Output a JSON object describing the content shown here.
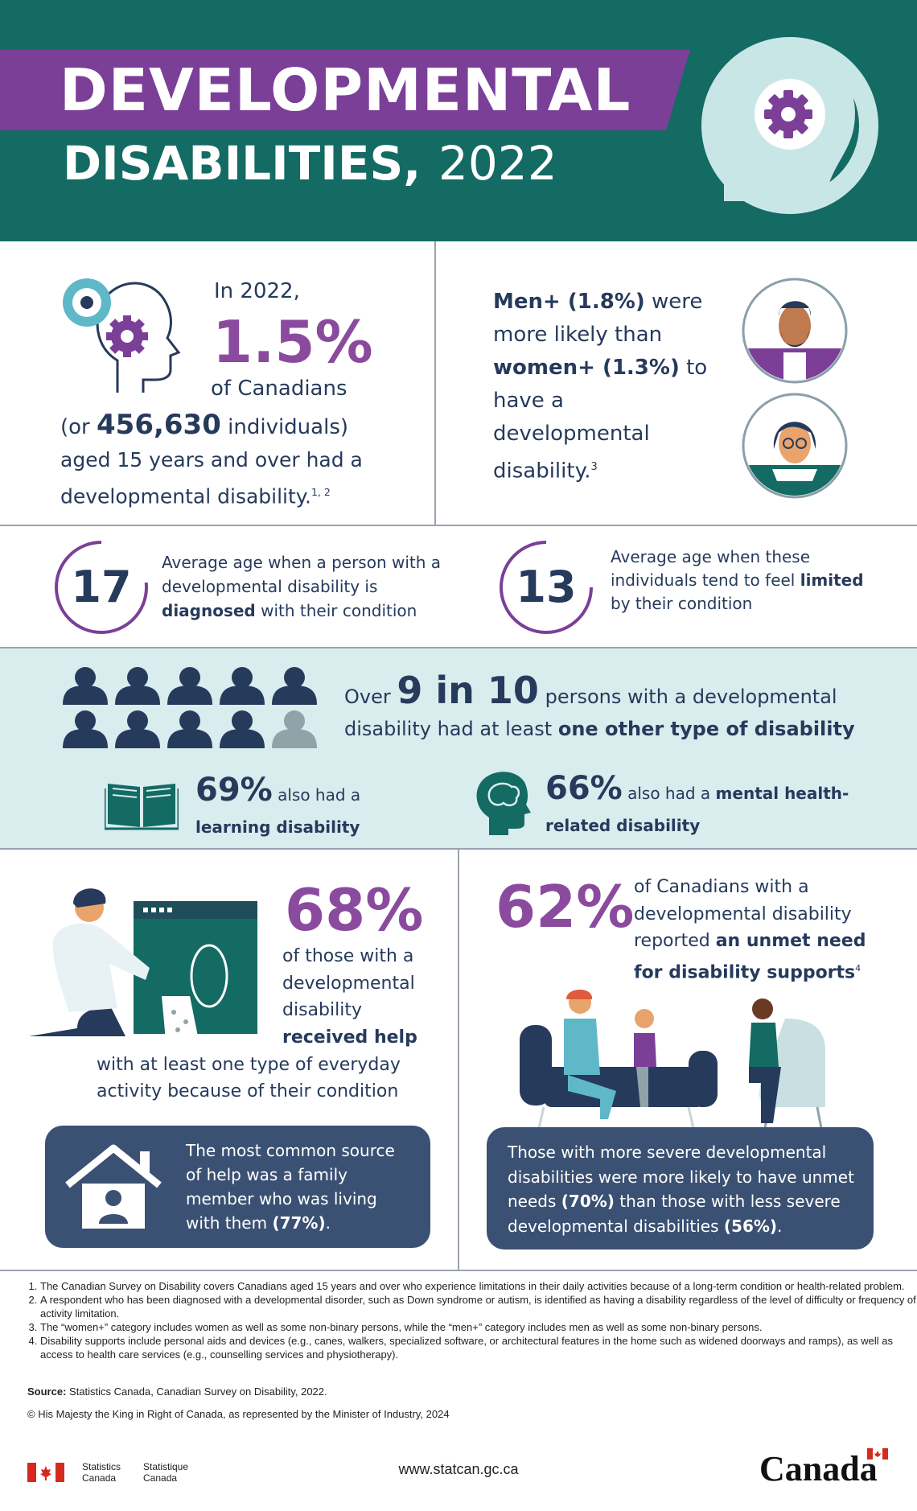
{
  "header": {
    "title_line1": "DEVELOPMENTAL",
    "title_line2": "DISABILITIES,",
    "year": "2022"
  },
  "prevalence": {
    "intro": "In 2022,",
    "percent": "1.5%",
    "of": "of Canadians",
    "count_prefix": "(or",
    "count": "456,630",
    "count_suffix": "individuals)",
    "rest": "aged 15 years and over had a developmental disability.",
    "note": "1, 2"
  },
  "gender": {
    "men": "Men+ (1.8%)",
    "text1": "were more likely than",
    "women": "women+ (1.3%)",
    "text2": "to have a developmental disability.",
    "note": "3"
  },
  "ages": [
    {
      "number": "17",
      "text1": "Average age when a person with a developmental disability is",
      "bold": "diagnosed",
      "text2": "with their condition"
    },
    {
      "number": "13",
      "text1": "Average age when these individuals tend to feel",
      "bold": "limited",
      "text2": "by their condition"
    }
  ],
  "other_disability": {
    "prefix": "Over",
    "highlight": "9 in 10",
    "text": "persons with a developmental disability had at least",
    "bold": "one other type of disability",
    "items": [
      {
        "percent": "69%",
        "text": "also had a",
        "bold": "learning disability"
      },
      {
        "percent": "66%",
        "text": "also had a",
        "bold": "mental health-related disability"
      }
    ]
  },
  "help": {
    "percent": "68%",
    "text1": "of those with a developmental disability",
    "bold": "received help",
    "text2": "with at least one type of everyday activity because of their condition",
    "box_text": "The most common source of help was a family member who was living with them",
    "box_bold": "(77%)",
    "box_end": "."
  },
  "unmet": {
    "percent": "62%",
    "text1": "of Canadians with a developmental disability reported",
    "bold": "an unmet need for disability supports",
    "note": "4",
    "box_text1": "Those with more severe developmental disabilities were more likely to have unmet needs",
    "box_bold1": "(70%)",
    "box_text2": "than those with less severe developmental disabilities",
    "box_bold2": "(56%)",
    "box_end": "."
  },
  "footnotes": [
    "The Canadian Survey on Disability covers Canadians aged 15 years and over who experience limitations in their daily activities because of a long-term condition or health-related problem.",
    "A respondent who has been diagnosed with a developmental disorder, such as Down syndrome or autism, is identified as having a disability regardless of the level of difficulty or frequency of activity limitation.",
    "The “women+” category includes women as well as some non-binary persons, while the “men+” category includes men as well as some non-binary persons.",
    "Disability supports include personal aids and devices (e.g., canes, walkers, specialized software, or architectural features in the home such as widened doorways and ramps), as well as access to health care services (e.g., counselling services and physiotherapy)."
  ],
  "source_label": "Source:",
  "source": "Statistics Canada, Canadian Survey on Disability, 2022.",
  "copyright": "© His Majesty the King in Right of Canada, as represented by the Minister of Industry, 2024",
  "footer": {
    "agency_en": "Statistics Canada",
    "agency_fr": "Statistique Canada",
    "url": "www.statcan.gc.ca",
    "wordmark": "Canada"
  }
}
